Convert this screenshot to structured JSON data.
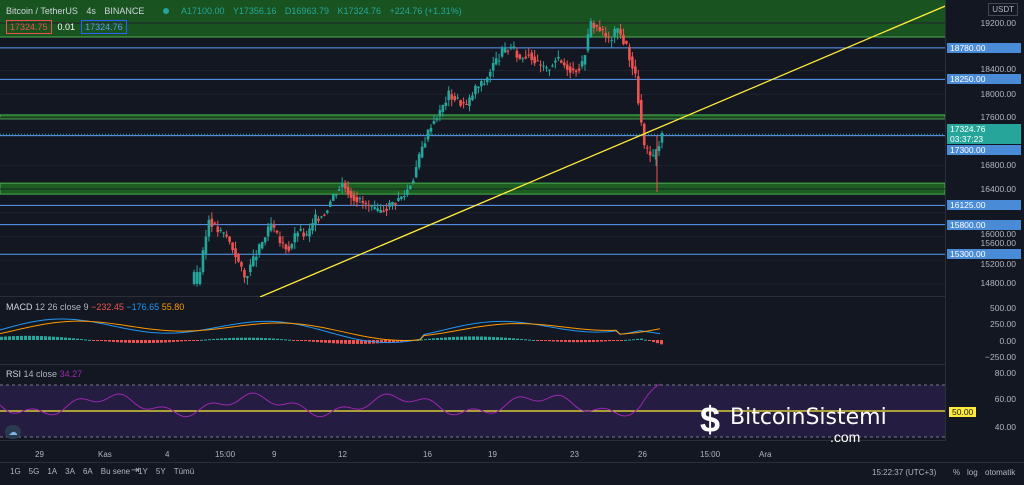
{
  "header": {
    "symbol": "Bitcoin / TetherUS",
    "interval": "4s",
    "exchange": "BINANCE",
    "open": "A17100.00",
    "high": "Y17356.16",
    "low": "D16963.79",
    "close": "K17324.76",
    "change": "+224.76 (+1.31%)",
    "sell_price": "17324.75",
    "spread": "0.01",
    "buy_price": "17324.76"
  },
  "price_axis": {
    "currency": "USDT",
    "ticks": [
      "19200.00",
      "18400.00",
      "18000.00",
      "17600.00",
      "16800.00",
      "16400.00",
      "16000.00",
      "15600.00",
      "15200.00",
      "14800.00"
    ],
    "levels": [
      "18780.00",
      "18250.00",
      "17300.00",
      "16125.00",
      "15800.00",
      "15300.00"
    ],
    "current_price": "17324.76",
    "countdown": "03:37:23"
  },
  "macd": {
    "label": "MACD",
    "params": "12 26 close 9",
    "hist": "−232.45",
    "macd": "−176.65",
    "signal": "55.80",
    "ticks": [
      "500.00",
      "250.00",
      "0.00",
      "−250.00"
    ]
  },
  "rsi": {
    "label": "RSI",
    "params": "14 close",
    "value": "34.27",
    "ticks": [
      "80.00",
      "60.00",
      "40.00"
    ],
    "level": "50.00"
  },
  "time_axis": [
    "29",
    "Kas",
    "4",
    "15:00",
    "9",
    "12",
    "16",
    "19",
    "23",
    "26",
    "15:00",
    "Ara"
  ],
  "timeframes": [
    "1G",
    "5G",
    "1A",
    "3A",
    "6A",
    "Bu sene",
    "1Y",
    "5Y",
    "Tümü"
  ],
  "footer": {
    "clock": "15:22:37 (UTC+3)",
    "percent": "%",
    "log": "log",
    "auto": "otomatik"
  },
  "watermark": "BitcoinSistemi .com",
  "chart_data": {
    "type": "candlestick",
    "closes": [
      15000,
      15900,
      15700,
      15600,
      15300,
      14900,
      15200,
      15500,
      15800,
      15500,
      15400,
      15700,
      15600,
      15900,
      16000,
      16300,
      16500,
      16300,
      16200,
      16100,
      16000,
      16100,
      16200,
      16300,
      16600,
      17100,
      17500,
      17700,
      18000,
      17900,
      17800,
      18100,
      18200,
      18500,
      18700,
      18800,
      18600,
      18700,
      18500,
      18400,
      18600,
      18500,
      18400,
      18500,
      19200,
      19100,
      18900,
      19100,
      18800,
      18300,
      17100,
      16900,
      17324.76
    ]
  }
}
